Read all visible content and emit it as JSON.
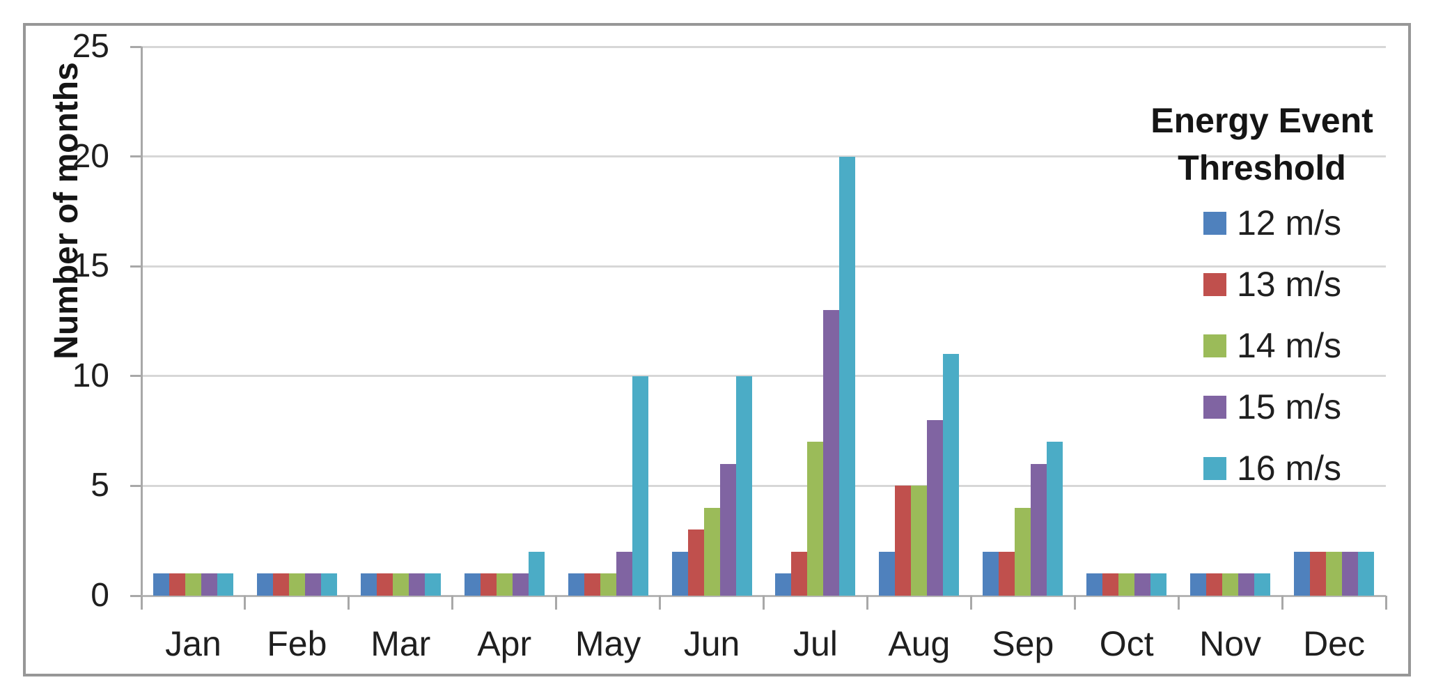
{
  "chart_data": {
    "type": "bar",
    "title": "",
    "xlabel": "",
    "ylabel": "Number of months",
    "ylim": [
      0,
      25
    ],
    "yticks": [
      0,
      5,
      10,
      15,
      20,
      25
    ],
    "grid": true,
    "legend_title": "Energy Event Threshold",
    "legend_position": "right-inside",
    "categories": [
      "Jan",
      "Feb",
      "Mar",
      "Apr",
      "May",
      "Jun",
      "Jul",
      "Aug",
      "Sep",
      "Oct",
      "Nov",
      "Dec"
    ],
    "series": [
      {
        "name": "12 m/s",
        "color": "#4F81BD",
        "values": [
          1,
          1,
          1,
          1,
          1,
          2,
          1,
          2,
          2,
          1,
          1,
          2
        ]
      },
      {
        "name": "13 m/s",
        "color": "#C0504D",
        "values": [
          1,
          1,
          1,
          1,
          1,
          3,
          2,
          5,
          2,
          1,
          1,
          2
        ]
      },
      {
        "name": "14 m/s",
        "color": "#9BBB59",
        "values": [
          1,
          1,
          1,
          1,
          1,
          4,
          7,
          5,
          4,
          1,
          1,
          2
        ]
      },
      {
        "name": "15 m/s",
        "color": "#8064A2",
        "values": [
          1,
          1,
          1,
          1,
          2,
          6,
          13,
          8,
          6,
          1,
          1,
          2
        ]
      },
      {
        "name": "16 m/s",
        "color": "#4BACC6",
        "values": [
          1,
          1,
          1,
          2,
          10,
          10,
          20,
          11,
          7,
          1,
          1,
          2
        ]
      }
    ]
  },
  "colors": {
    "gridline": "#d7d7d7",
    "axis": "#a8a8a8",
    "frame_border": "#979797",
    "text": "#1f1f1f",
    "background": "#ffffff"
  }
}
